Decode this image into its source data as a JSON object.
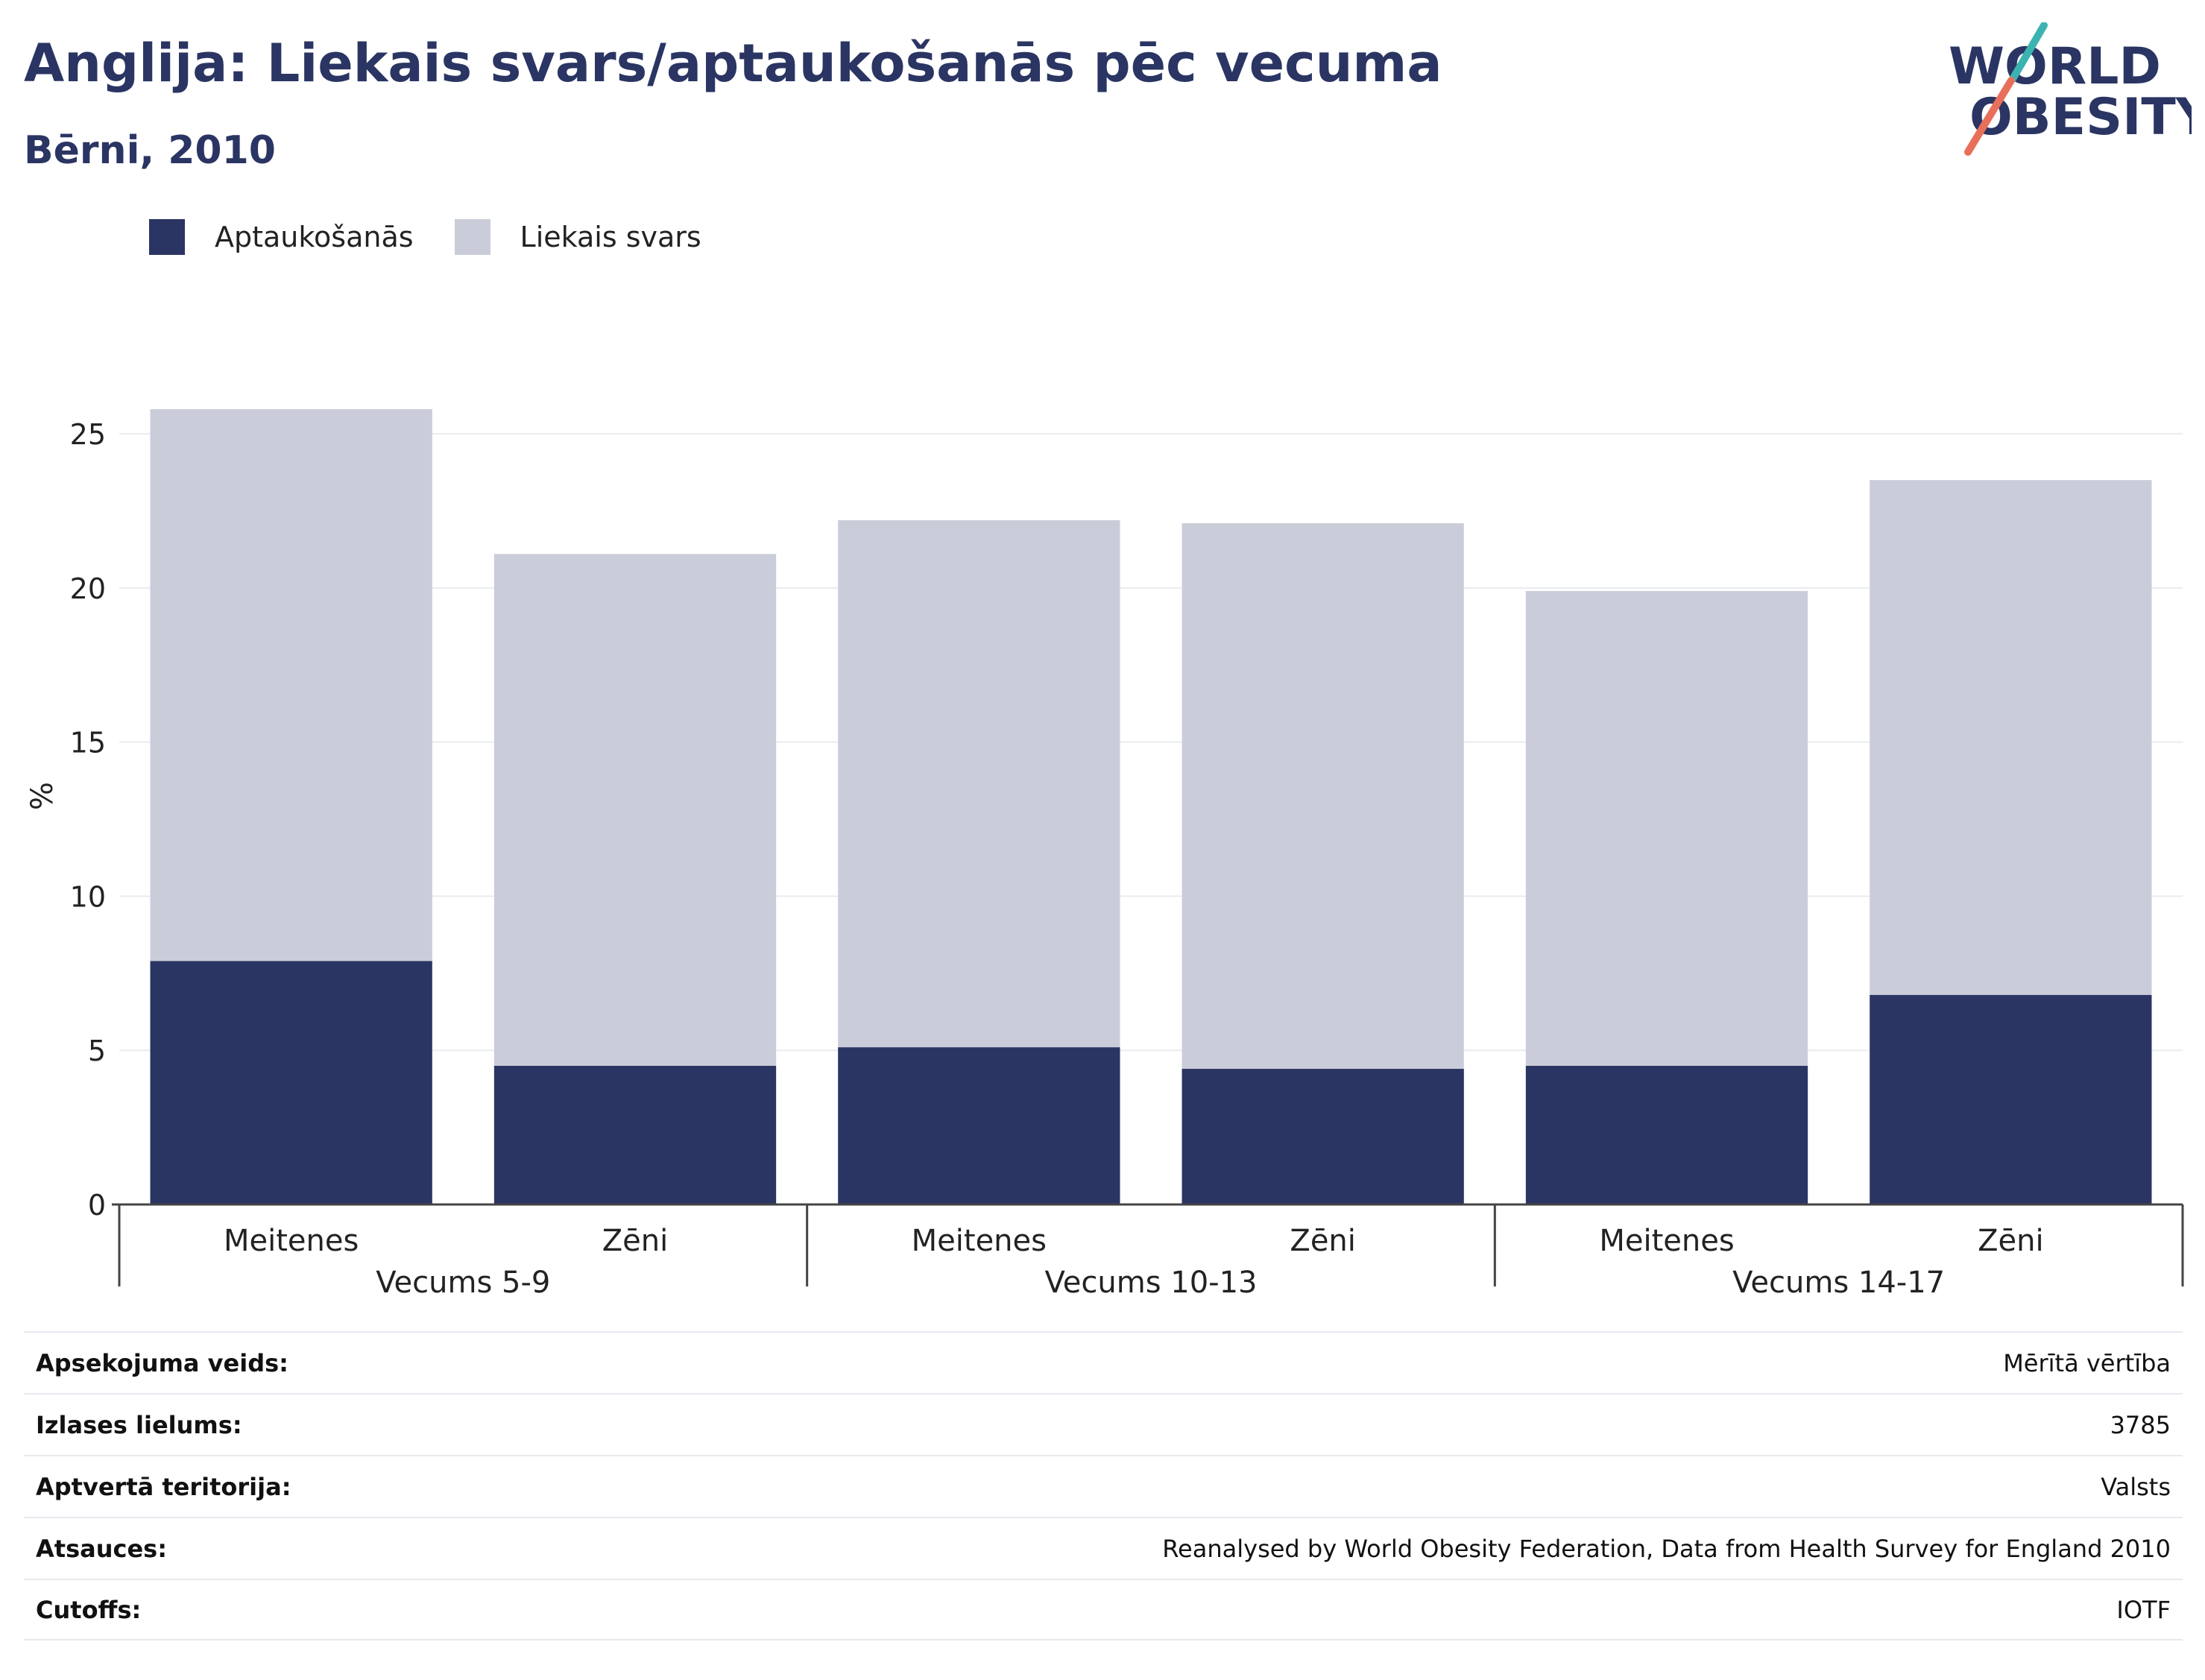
{
  "header": {
    "title": "Anglija: Liekais svars/aptaukošanās pēc vecuma",
    "subtitle": "Bērni, 2010"
  },
  "logo": {
    "line1": "WORLD",
    "line2": "OBESITY",
    "accent_teal": "#3bb3b0",
    "accent_coral": "#e8705a",
    "text_color": "#2a3563"
  },
  "legend": [
    {
      "label": "Aptaukošanās",
      "color": "#2a3563"
    },
    {
      "label": "Liekais svars",
      "color": "#cacdd9"
    }
  ],
  "chart_data": {
    "type": "bar",
    "stacked": true,
    "title": "Anglija: Liekais svars/aptaukošanās pēc vecuma",
    "subtitle": "Bērni, 2010",
    "ylabel": "%",
    "xlabel": "",
    "ylim": [
      0,
      26.5
    ],
    "yticks": [
      0,
      5,
      10,
      15,
      20,
      25
    ],
    "grid": true,
    "legend_position": "top-left",
    "groups": [
      {
        "label": "Vecums 5-9",
        "categories": [
          "Meitenes",
          "Zēni"
        ]
      },
      {
        "label": "Vecums 10-13",
        "categories": [
          "Meitenes",
          "Zēni"
        ]
      },
      {
        "label": "Vecums 14-17",
        "categories": [
          "Meitenes",
          "Zēni"
        ]
      }
    ],
    "series": [
      {
        "name": "Aptaukošanās",
        "color": "#2a3563",
        "values": [
          7.9,
          4.5,
          5.1,
          4.4,
          4.5,
          6.8
        ]
      },
      {
        "name": "Liekais svars",
        "color": "#cacdd9",
        "values": [
          17.9,
          16.6,
          17.1,
          17.7,
          15.4,
          16.7
        ]
      }
    ]
  },
  "meta": [
    {
      "label": "Apsekojuma veids:",
      "value": "Mērītā vērtība"
    },
    {
      "label": "Izlases lielums:",
      "value": "3785"
    },
    {
      "label": "Aptvertā teritorija:",
      "value": "Valsts"
    },
    {
      "label": "Atsauces:",
      "value": "Reanalysed by World Obesity Federation, Data from Health Survey for England 2010"
    },
    {
      "label": "Cutoffs:",
      "value": "IOTF"
    }
  ]
}
